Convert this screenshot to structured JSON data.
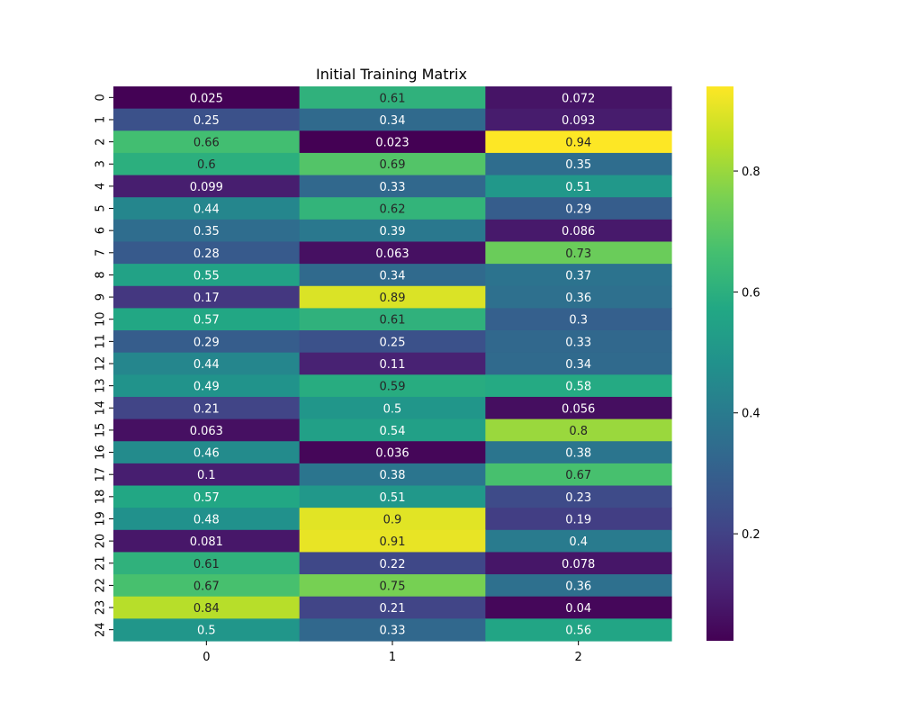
{
  "chart_data": {
    "type": "heatmap",
    "title": "Initial Training Matrix",
    "xlabel": "",
    "ylabel": "",
    "colormap": "viridis",
    "x_labels": [
      "0",
      "1",
      "2"
    ],
    "y_labels": [
      "0",
      "1",
      "2",
      "3",
      "4",
      "5",
      "6",
      "7",
      "8",
      "9",
      "10",
      "11",
      "12",
      "13",
      "14",
      "15",
      "16",
      "17",
      "18",
      "19",
      "20",
      "21",
      "22",
      "23",
      "24"
    ],
    "values": [
      [
        0.025,
        0.61,
        0.072
      ],
      [
        0.25,
        0.34,
        0.093
      ],
      [
        0.66,
        0.023,
        0.94
      ],
      [
        0.6,
        0.69,
        0.35
      ],
      [
        0.099,
        0.33,
        0.51
      ],
      [
        0.44,
        0.62,
        0.29
      ],
      [
        0.35,
        0.39,
        0.086
      ],
      [
        0.28,
        0.063,
        0.73
      ],
      [
        0.55,
        0.34,
        0.37
      ],
      [
        0.17,
        0.89,
        0.36
      ],
      [
        0.57,
        0.61,
        0.3
      ],
      [
        0.29,
        0.25,
        0.33
      ],
      [
        0.44,
        0.11,
        0.34
      ],
      [
        0.49,
        0.59,
        0.58
      ],
      [
        0.21,
        0.5,
        0.056
      ],
      [
        0.063,
        0.54,
        0.8
      ],
      [
        0.46,
        0.036,
        0.38
      ],
      [
        0.1,
        0.38,
        0.67
      ],
      [
        0.57,
        0.51,
        0.23
      ],
      [
        0.48,
        0.9,
        0.19
      ],
      [
        0.081,
        0.91,
        0.4
      ],
      [
        0.61,
        0.22,
        0.078
      ],
      [
        0.67,
        0.75,
        0.36
      ],
      [
        0.84,
        0.21,
        0.04
      ],
      [
        0.5,
        0.33,
        0.56
      ]
    ],
    "value_labels": [
      [
        "0.025",
        "0.61",
        "0.072"
      ],
      [
        "0.25",
        "0.34",
        "0.093"
      ],
      [
        "0.66",
        "0.023",
        "0.94"
      ],
      [
        "0.6",
        "0.69",
        "0.35"
      ],
      [
        "0.099",
        "0.33",
        "0.51"
      ],
      [
        "0.44",
        "0.62",
        "0.29"
      ],
      [
        "0.35",
        "0.39",
        "0.086"
      ],
      [
        "0.28",
        "0.063",
        "0.73"
      ],
      [
        "0.55",
        "0.34",
        "0.37"
      ],
      [
        "0.17",
        "0.89",
        "0.36"
      ],
      [
        "0.57",
        "0.61",
        "0.3"
      ],
      [
        "0.29",
        "0.25",
        "0.33"
      ],
      [
        "0.44",
        "0.11",
        "0.34"
      ],
      [
        "0.49",
        "0.59",
        "0.58"
      ],
      [
        "0.21",
        "0.5",
        "0.056"
      ],
      [
        "0.063",
        "0.54",
        "0.8"
      ],
      [
        "0.46",
        "0.036",
        "0.38"
      ],
      [
        "0.1",
        "0.38",
        "0.67"
      ],
      [
        "0.57",
        "0.51",
        "0.23"
      ],
      [
        "0.48",
        "0.9",
        "0.19"
      ],
      [
        "0.081",
        "0.91",
        "0.4"
      ],
      [
        "0.61",
        "0.22",
        "0.078"
      ],
      [
        "0.67",
        "0.75",
        "0.36"
      ],
      [
        "0.84",
        "0.21",
        "0.04"
      ],
      [
        "0.5",
        "0.33",
        "0.56"
      ]
    ],
    "vmin": 0.023,
    "vmax": 0.94,
    "colorbar": {
      "ticks": [
        0.2,
        0.4,
        0.6,
        0.8
      ],
      "tick_labels": [
        "0.2",
        "0.4",
        "0.6",
        "0.8"
      ]
    },
    "legend": "colorbar-right",
    "grid": false
  }
}
